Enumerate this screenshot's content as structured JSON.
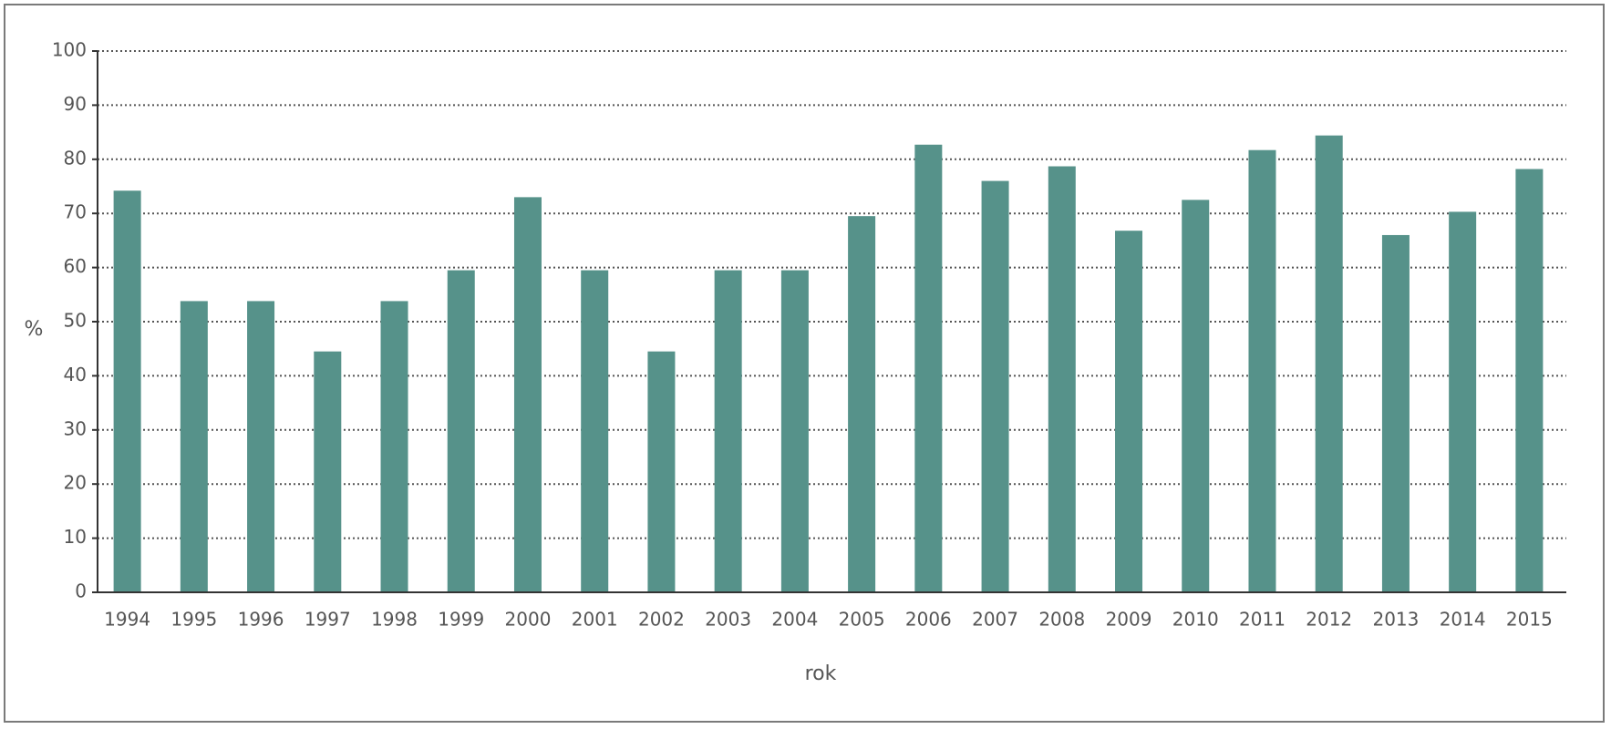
{
  "chart_data": {
    "type": "bar",
    "categories": [
      "1994",
      "1995",
      "1996",
      "1997",
      "1998",
      "1999",
      "2000",
      "2001",
      "2002",
      "2003",
      "2004",
      "2005",
      "2006",
      "2007",
      "2008",
      "2009",
      "2010",
      "2011",
      "2012",
      "2013",
      "2014",
      "2015"
    ],
    "values": [
      74.2,
      53.8,
      53.8,
      44.5,
      53.8,
      59.5,
      73.0,
      59.5,
      44.5,
      59.5,
      59.5,
      69.5,
      82.7,
      76.0,
      78.7,
      66.8,
      72.5,
      81.7,
      84.4,
      66.0,
      70.3,
      78.2
    ],
    "xlabel": "rok",
    "ylabel": "%",
    "ylim": [
      0,
      100
    ],
    "yticks": [
      0,
      10,
      20,
      30,
      40,
      50,
      60,
      70,
      80,
      90,
      100
    ],
    "grid": true,
    "bar_color": "#56928a"
  }
}
